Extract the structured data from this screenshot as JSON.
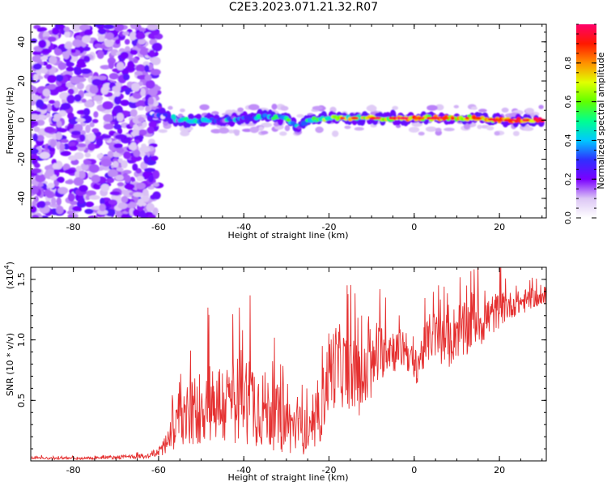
{
  "title": "C2E3.2023.071.21.32.R07",
  "chart_data": [
    {
      "type": "heatmap",
      "title": "C2E3.2023.071.21.32.R07",
      "xlabel": "Height of straight line (km)",
      "ylabel": "Frequency (Hz)",
      "xlim": [
        -90,
        31
      ],
      "ylim": [
        -50,
        49
      ],
      "x_ticks": [
        -80,
        -60,
        -40,
        -20,
        0,
        20
      ],
      "y_ticks": [
        -40,
        -20,
        0,
        20,
        40
      ],
      "colorbar": {
        "label": "Normalized spectral amplitude",
        "range": [
          0,
          1
        ],
        "ticks": [
          "0.0",
          "0.2",
          "0.4",
          "0.6",
          "0.8"
        ],
        "colors": [
          "#ffffff",
          "#dcc6f5",
          "#7a00ff",
          "#2f2fff",
          "#00c8ff",
          "#00ff90",
          "#60ff00",
          "#e0ff00",
          "#ff9000",
          "#ff1800",
          "#ff006a"
        ]
      },
      "noise_region_x": [
        -90,
        -60
      ],
      "track": [
        {
          "x": -62,
          "f": 3,
          "a": 0.15
        },
        {
          "x": -58,
          "f": 2,
          "a": 0.25
        },
        {
          "x": -55,
          "f": 0,
          "a": 0.35
        },
        {
          "x": -50,
          "f": 0,
          "a": 0.35
        },
        {
          "x": -45,
          "f": 0,
          "a": 0.3
        },
        {
          "x": -40,
          "f": 1,
          "a": 0.35
        },
        {
          "x": -35,
          "f": 2,
          "a": 0.4
        },
        {
          "x": -30,
          "f": 1,
          "a": 0.45
        },
        {
          "x": -27,
          "f": -4,
          "a": 0.3
        },
        {
          "x": -25,
          "f": 0,
          "a": 0.5
        },
        {
          "x": -20,
          "f": 1,
          "a": 0.55
        },
        {
          "x": -15,
          "f": 1,
          "a": 0.6
        },
        {
          "x": -10,
          "f": 1,
          "a": 0.6
        },
        {
          "x": -5,
          "f": 1,
          "a": 0.65
        },
        {
          "x": 0,
          "f": 1,
          "a": 0.75
        },
        {
          "x": 5,
          "f": 1,
          "a": 0.7
        },
        {
          "x": 10,
          "f": 1,
          "a": 0.7
        },
        {
          "x": 15,
          "f": 1,
          "a": 0.75
        },
        {
          "x": 20,
          "f": 0,
          "a": 0.85
        },
        {
          "x": 25,
          "f": 0,
          "a": 0.85
        },
        {
          "x": 30,
          "f": 0,
          "a": 0.85
        }
      ]
    },
    {
      "type": "line",
      "xlabel": "Height of straight line (km)",
      "ylabel": "SNR (10 * v/v)",
      "y_multiplier": "(x10",
      "y_multiplier_exp": "4",
      "y_multiplier_close": ")",
      "xlim": [
        -90,
        31
      ],
      "ylim": [
        0,
        16000
      ],
      "x_ticks": [
        -80,
        -60,
        -40,
        -20,
        0,
        20
      ],
      "y_ticks": [
        "0.5",
        "1.0",
        "1.5"
      ],
      "line_color": "#e53030",
      "series": [
        {
          "x": [
            -90,
            -80,
            -70,
            -62,
            -60,
            -58,
            -56,
            -54,
            -52,
            -50,
            -48,
            -46,
            -44,
            -42,
            -40,
            -38,
            -36,
            -34,
            -32,
            -30,
            -28,
            -26,
            -24,
            -22,
            -20,
            -18,
            -16,
            -14,
            -12,
            -10,
            -8,
            -6,
            -4,
            -2,
            0,
            2,
            4,
            6,
            8,
            10,
            12,
            14,
            16,
            18,
            20,
            22,
            24,
            26,
            28,
            30
          ],
          "values": [
            250,
            200,
            300,
            400,
            800,
            1500,
            2500,
            3500,
            4000,
            4500,
            5000,
            4800,
            4500,
            5200,
            5500,
            5000,
            4500,
            4000,
            3500,
            3000,
            2800,
            2500,
            2000,
            4000,
            7500,
            8000,
            7500,
            7000,
            6500,
            7500,
            9000,
            9500,
            9000,
            9500,
            7500,
            9000,
            10500,
            10000,
            9500,
            11000,
            10500,
            12000,
            11500,
            12000,
            12500,
            12800,
            13000,
            13200,
            13500,
            13300
          ],
          "spread": [
            100,
            100,
            150,
            200,
            500,
            1000,
            1800,
            2500,
            3000,
            3200,
            3500,
            3500,
            3500,
            3800,
            4000,
            3800,
            3500,
            3000,
            2800,
            2500,
            2200,
            2000,
            1500,
            2500,
            3500,
            3500,
            3200,
            3000,
            3000,
            2500,
            2500,
            2000,
            1800,
            1800,
            1500,
            1800,
            2000,
            2200,
            2000,
            2500,
            2500,
            2500,
            2000,
            1800,
            1500,
            1200,
            1000,
            1000,
            800,
            600
          ]
        }
      ]
    }
  ]
}
